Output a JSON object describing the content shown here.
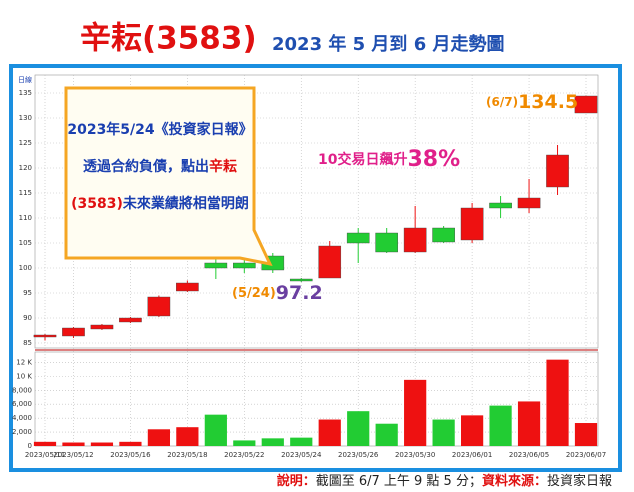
{
  "chart_data": {
    "type": "candlestick",
    "title": "辛耘(3583)",
    "subtitle": "2023 年 5 月到 6 月走勢圖",
    "panel_label": "日線",
    "categories": [
      "2023/05/11",
      "2023/05/12",
      null,
      "2023/05/16",
      null,
      "2023/05/18",
      null,
      "2023/05/22",
      null,
      "2023/05/24",
      null,
      "2023/05/26",
      null,
      "2023/05/30",
      null,
      "2023/06/01",
      null,
      "2023/06/05",
      null,
      "2023/06/07"
    ],
    "open": [
      86.2,
      86.4,
      87.8,
      89.2,
      90.4,
      95.4,
      101,
      101,
      102.4,
      97.8,
      98,
      107,
      107,
      103.2,
      108,
      105.6,
      113,
      112,
      116.2,
      131
    ],
    "high": [
      86.8,
      88.2,
      88.8,
      90.2,
      94.5,
      97.5,
      102.4,
      102,
      103,
      98,
      105.4,
      108,
      108,
      112.4,
      108.4,
      113,
      114.4,
      117.8,
      124.6,
      134.5
    ],
    "low": [
      85.5,
      86,
      87.6,
      89,
      90.2,
      95.2,
      97.8,
      99,
      99,
      97.2,
      98,
      101,
      103,
      103,
      105,
      105,
      110,
      111,
      114.6,
      131
    ],
    "close": [
      86.6,
      88,
      88.6,
      90,
      94.2,
      97,
      100,
      100,
      99.6,
      97.4,
      104.4,
      105,
      103.2,
      108,
      105.2,
      112,
      112,
      114,
      122.6,
      134.4
    ],
    "volume": [
      600,
      500,
      500,
      600,
      2400,
      2700,
      4500,
      800,
      1100,
      1200,
      3800,
      5000,
      3200,
      9500,
      3800,
      4400,
      5800,
      6400,
      12400,
      3300
    ],
    "up_color": "#ee1111",
    "down_color": "#22cc33",
    "ylim": [
      84,
      138.6
    ],
    "yticks": [
      85,
      90,
      95,
      100,
      105,
      110,
      115,
      120,
      125,
      130,
      135
    ],
    "volume_ylim": [
      0,
      13500
    ],
    "volume_yticks": [
      0,
      {
        "value": 2000,
        "label": "2,000"
      },
      {
        "value": 4000,
        "label": "4,000"
      },
      {
        "value": 6000,
        "label": "6,000"
      },
      {
        "value": 8000,
        "label": "8,000"
      },
      {
        "value": 10000,
        "label": "10 K"
      },
      {
        "value": 12000,
        "label": "12 K"
      }
    ],
    "grid": true,
    "callout": [
      [
        {
          "text": "2023年5/24《投資家日報》",
          "color": "#1a3fb0"
        }
      ],
      [
        {
          "text": "透過合約負債，點出",
          "color": "#1a3fb0"
        },
        {
          "text": "辛耘",
          "color": "#e01010"
        }
      ],
      [
        {
          "text": "(3583)",
          "color": "#e01010"
        },
        {
          "text": "未來業績將相當明朗",
          "color": "#1a3fb0"
        }
      ]
    ],
    "low_note": {
      "date": "(5/24)",
      "value": "97.2"
    },
    "rise_note": {
      "text": "10交易日飆升",
      "value": "38%"
    },
    "high_note": {
      "date": "(6/7)",
      "value": "134.5"
    },
    "footer": [
      {
        "text": "說明：",
        "color": "#e01010"
      },
      {
        "text": "截圖至 6/7 上午 9 點 5 分；",
        "color": "#222"
      },
      {
        "text": "資料來源：",
        "color": "#e01010"
      },
      {
        "text": "投資家日報",
        "color": "#222"
      }
    ]
  }
}
